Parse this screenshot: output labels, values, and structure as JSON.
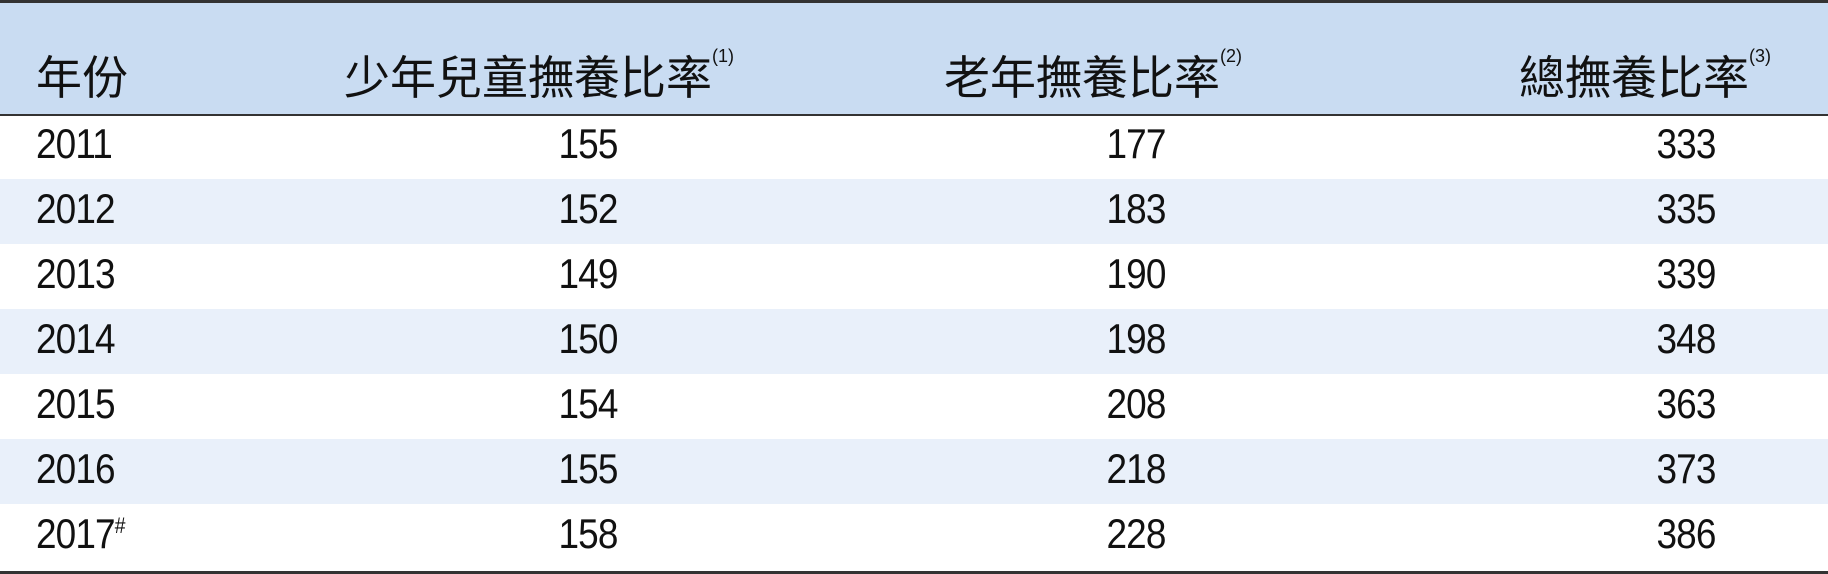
{
  "table": {
    "headers": [
      {
        "label": "年份",
        "note": ""
      },
      {
        "label": "少年兒童撫養比率",
        "note": "(1)"
      },
      {
        "label": "老年撫養比率",
        "note": "(2)"
      },
      {
        "label": "總撫養比率",
        "note": "(3)"
      }
    ],
    "rows": [
      {
        "year": "2011",
        "mark": "",
        "child": "155",
        "elderly": "177",
        "total": "333"
      },
      {
        "year": "2012",
        "mark": "",
        "child": "152",
        "elderly": "183",
        "total": "335"
      },
      {
        "year": "2013",
        "mark": "",
        "child": "149",
        "elderly": "190",
        "total": "339"
      },
      {
        "year": "2014",
        "mark": "",
        "child": "150",
        "elderly": "198",
        "total": "348"
      },
      {
        "year": "2015",
        "mark": "",
        "child": "154",
        "elderly": "208",
        "total": "363"
      },
      {
        "year": "2016",
        "mark": "",
        "child": "155",
        "elderly": "218",
        "total": "373"
      },
      {
        "year": "2017",
        "mark": "#",
        "child": "158",
        "elderly": "228",
        "total": "386"
      }
    ],
    "colors": {
      "header_bg": "#c9dcf2",
      "alt_row_bg": "#e9f0fa",
      "border": "#333333"
    }
  }
}
